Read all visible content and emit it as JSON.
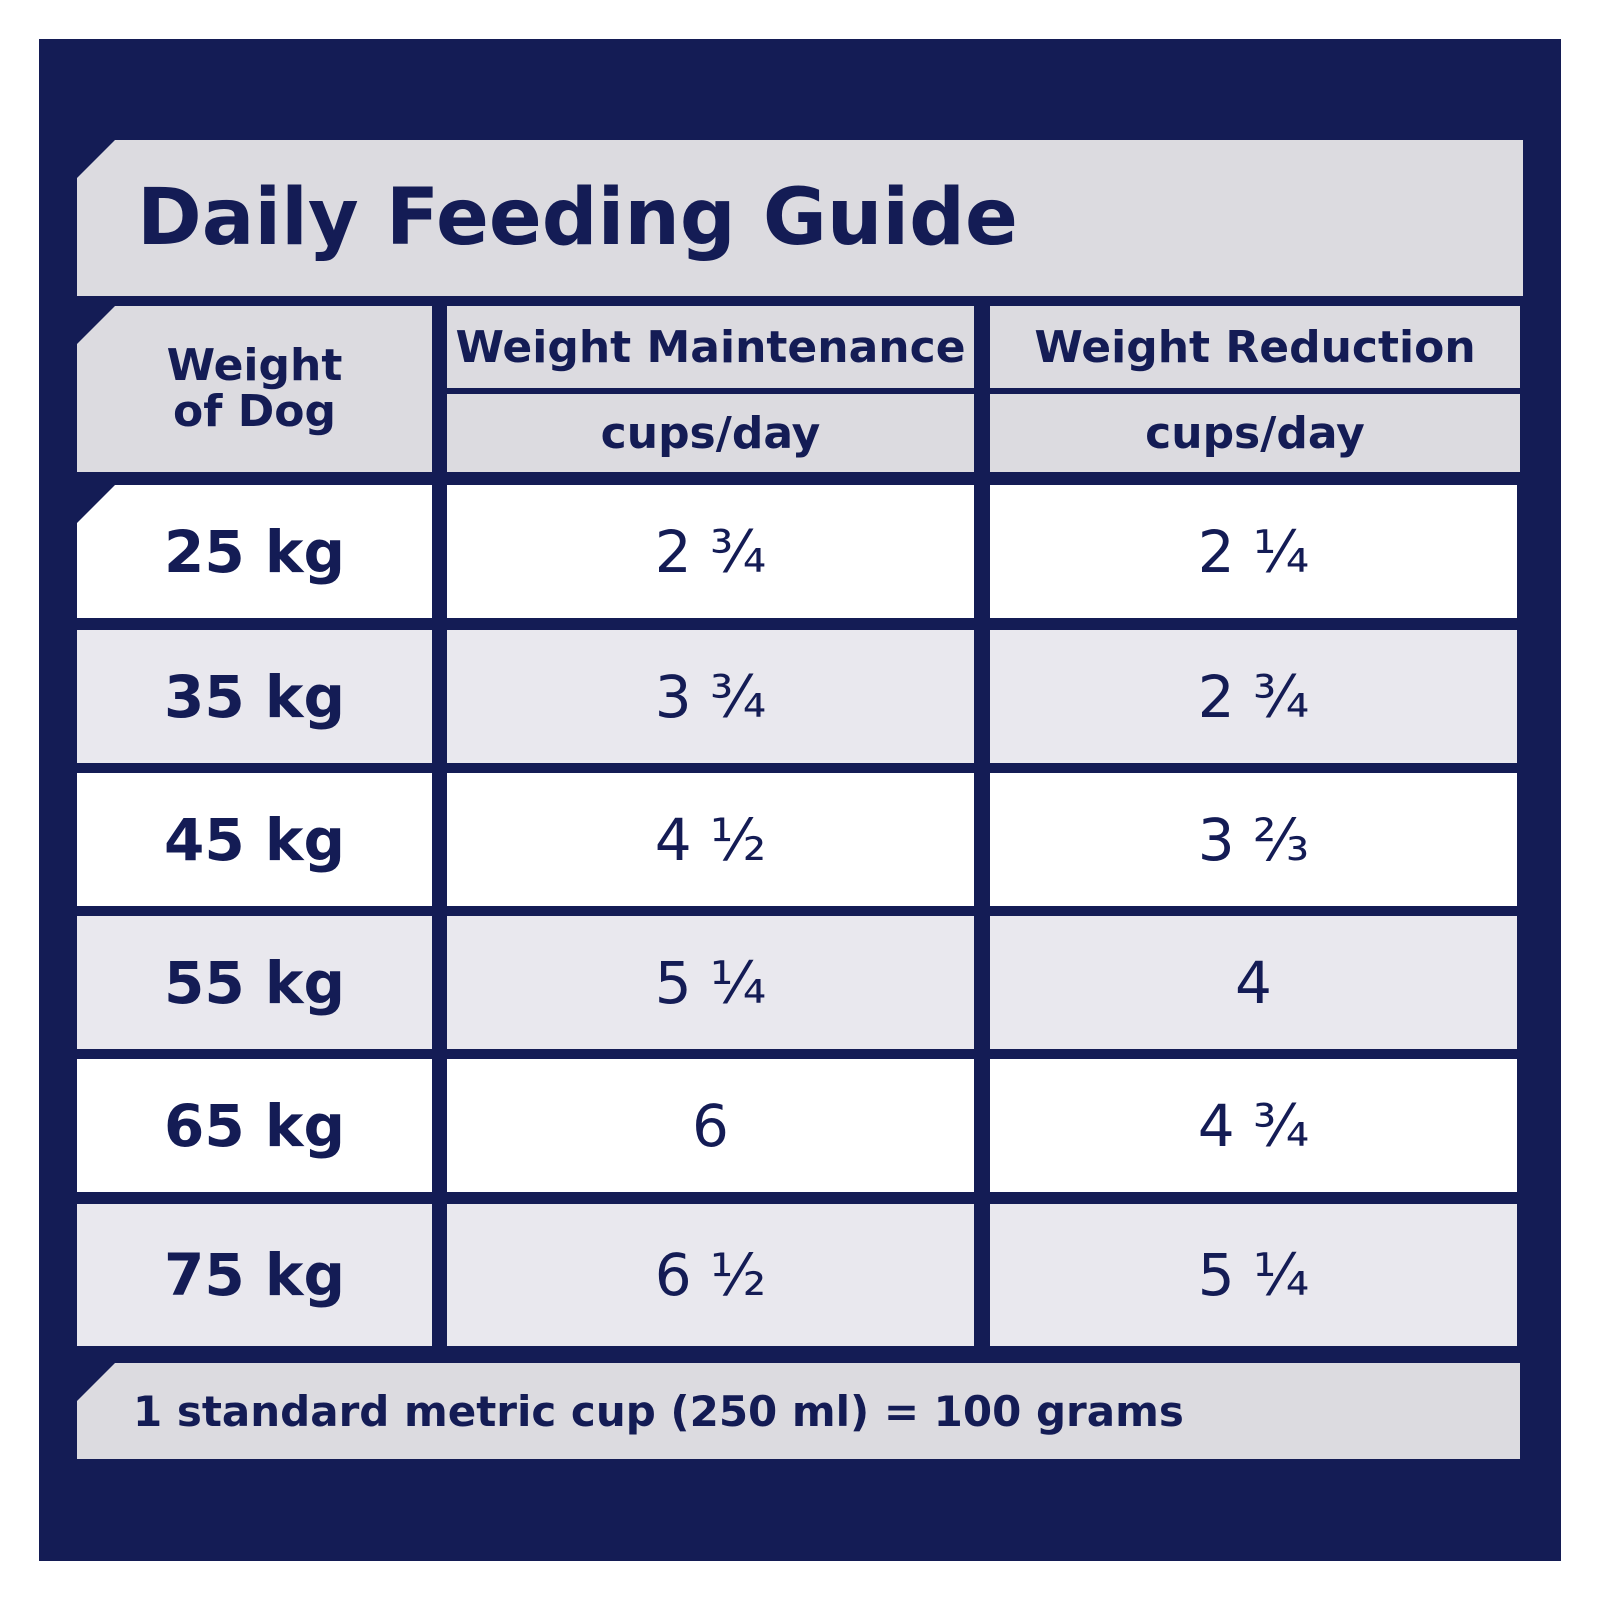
{
  "title": "Daily Feeding Guide",
  "table": {
    "header": {
      "first": "Weight of Dog",
      "columns": [
        "Weight Maintenance",
        "Weight Reduction"
      ],
      "units": [
        "cups/day",
        "cups/day"
      ]
    },
    "rows": [
      [
        "25 kg",
        "2 ¾",
        "2 ¼"
      ],
      [
        "35 kg",
        "3 ¾",
        "2 ¾"
      ],
      [
        "45 kg",
        "4 ½",
        "3 ⅔"
      ],
      [
        "55 kg",
        "5 ¼",
        "4"
      ],
      [
        "65 kg",
        "6",
        "4 ¾"
      ],
      [
        "75 kg",
        "6 ½",
        "5 ¼"
      ]
    ]
  },
  "footnote": "1 standard metric cup (250 ml) = 100 grams"
}
